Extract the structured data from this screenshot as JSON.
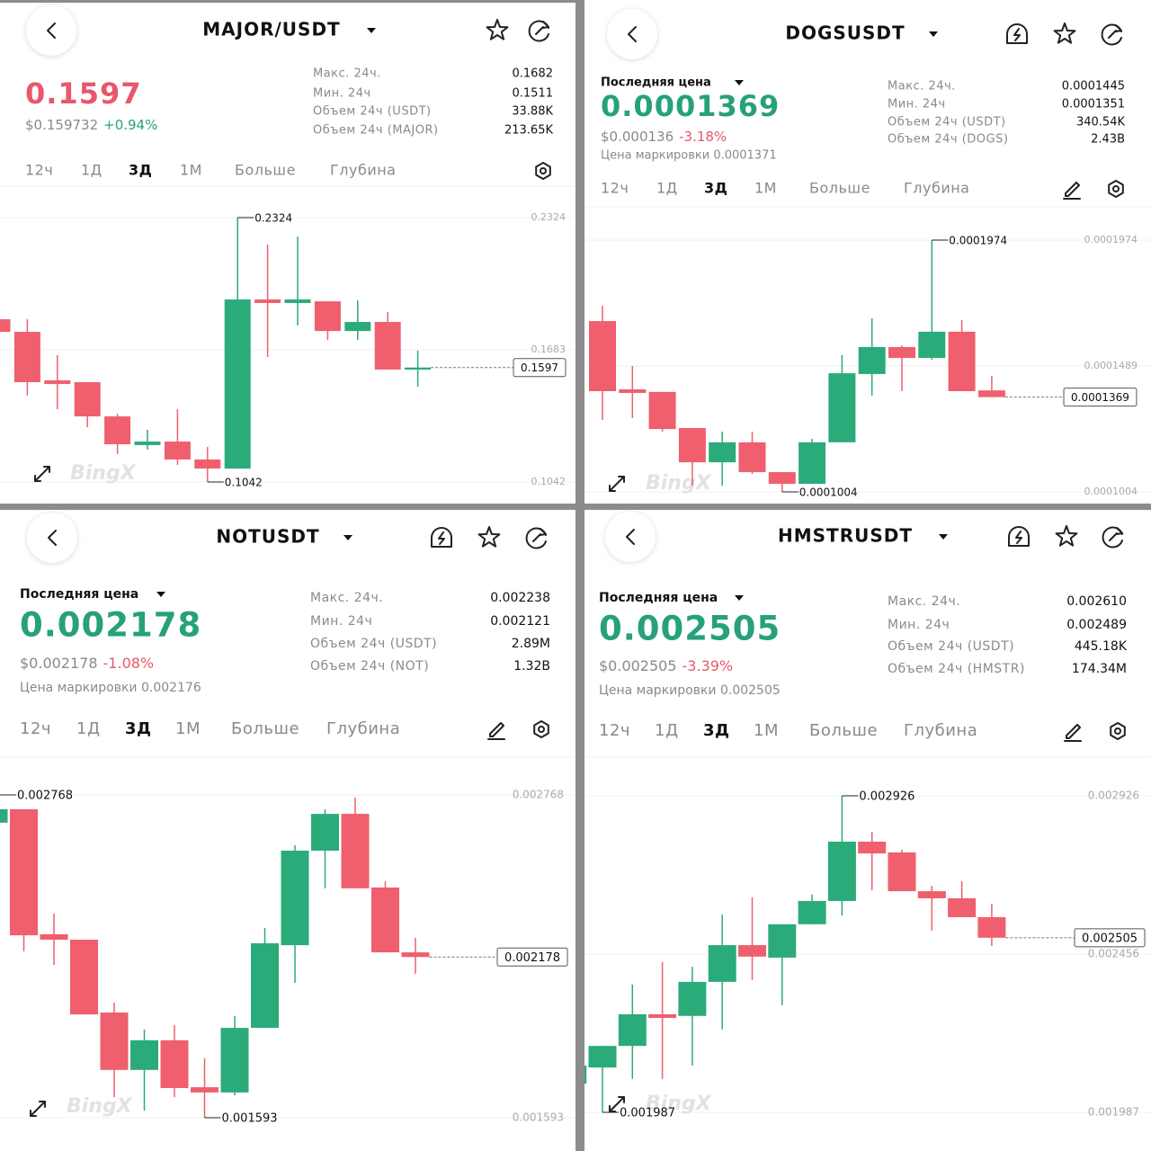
{
  "up_color": "#2bab7a",
  "down_color": "#ef5f6e",
  "panels": [
    {
      "pair": "MAJOR/USDT",
      "price": "0.1597",
      "price_color": "#e8576a",
      "usd_price": "$0.159732",
      "change": "+0.94%",
      "change_color": "#26a17b",
      "stats": [
        {
          "label": "Макс. 24ч.",
          "value": "0.1682"
        },
        {
          "label": "Мин. 24ч",
          "value": "0.1511"
        },
        {
          "label": "Объем 24ч (USDT)",
          "value": "33.88K"
        },
        {
          "label": "Объем 24ч (MAJOR)",
          "value": "213.65K"
        }
      ],
      "tabs": [
        "12ч",
        "1Д",
        "3Д",
        "1М",
        "Больше",
        "Глубина"
      ],
      "active_tab": 2,
      "chart": {
        "watermark": "BingX",
        "ylim": [
          0.1042,
          0.2324
        ],
        "yticks": [
          0.1042,
          0.1683,
          0.2324
        ],
        "last": 0.1597,
        "candles": [
          [
            0.1831,
            0.1853,
            0.1757,
            0.177
          ],
          [
            0.177,
            0.1831,
            0.1461,
            0.1526
          ],
          [
            0.1535,
            0.1657,
            0.1395,
            0.1517
          ],
          [
            0.1526,
            0.1526,
            0.1308,
            0.136
          ],
          [
            0.136,
            0.1373,
            0.1177,
            0.1225
          ],
          [
            0.1221,
            0.1295,
            0.1199,
            0.1238
          ],
          [
            0.1238,
            0.1395,
            0.1125,
            0.1151
          ],
          [
            0.1151,
            0.1212,
            0.1042,
            0.1107
          ],
          [
            0.1107,
            0.2324,
            0.1107,
            0.1927
          ],
          [
            0.1927,
            0.2193,
            0.1648,
            0.191
          ],
          [
            0.191,
            0.2232,
            0.1801,
            0.1927
          ],
          [
            0.1918,
            0.1918,
            0.1731,
            0.1774
          ],
          [
            0.1774,
            0.1923,
            0.1731,
            0.1818
          ],
          [
            0.1818,
            0.1866,
            0.1587,
            0.1587
          ],
          [
            0.1587,
            0.1679,
            0.1504,
            0.1597
          ]
        ]
      }
    },
    {
      "pair": "DOGSUSDT",
      "last_price_label": "Последняя цена",
      "price": "0.0001369",
      "price_color": "#26a17b",
      "usd_price": "$0.000136",
      "change": "-3.18%",
      "change_color": "#e8576a",
      "mark_price": "Цена маркировки 0.0001371",
      "stats": [
        {
          "label": "Макс. 24ч.",
          "value": "0.0001445"
        },
        {
          "label": "Мин. 24ч",
          "value": "0.0001351"
        },
        {
          "label": "Объем 24ч (USDT)",
          "value": "340.54K"
        },
        {
          "label": "Объем 24ч (DOGS)",
          "value": "2.43B"
        }
      ],
      "tabs": [
        "12ч",
        "1Д",
        "3Д",
        "1М",
        "Больше",
        "Глубина"
      ],
      "active_tab": 2,
      "chart": {
        "watermark": "BingX",
        "ylim": [
          0.0001004,
          0.0001974
        ],
        "yticks": [
          0.0001004,
          0.0001489,
          0.0001974
        ],
        "last": 0.0001369,
        "candles": [
          [
            0.0001662,
            0.0001721,
            0.0001281,
            0.0001392
          ],
          [
            0.0001399,
            0.0001489,
            0.0001288,
            0.0001385
          ],
          [
            0.0001389,
            0.0001389,
            0.0001236,
            0.0001246
          ],
          [
            0.000125,
            0.000125,
            0.0001028,
            0.0001118
          ],
          [
            0.0001118,
            0.0001236,
            0.0001028,
            0.0001195
          ],
          [
            0.0001195,
            0.0001236,
            0.0001073,
            0.000108
          ],
          [
            0.000108,
            0.000108,
            0.0001004,
            0.0001035
          ],
          [
            0.0001035,
            0.0001208,
            0.0001035,
            0.0001195
          ],
          [
            0.0001195,
            0.0001531,
            0.0001195,
            0.0001461
          ],
          [
            0.0001458,
            0.0001673,
            0.0001375,
            0.0001562
          ],
          [
            0.0001562,
            0.0001569,
            0.0001392,
            0.000152
          ],
          [
            0.000152,
            0.0001974,
            0.0001513,
            0.0001621
          ],
          [
            0.0001621,
            0.0001666,
            0.0001392,
            0.0001392
          ],
          [
            0.0001395,
            0.0001451,
            0.0001369,
            0.0001369
          ]
        ]
      }
    },
    {
      "pair": "NOTUSDT",
      "last_price_label": "Последняя цена",
      "price": "0.002178",
      "price_color": "#26a17b",
      "usd_price": "$0.002178",
      "change": "-1.08%",
      "change_color": "#e8576a",
      "mark_price": "Цена маркировки 0.002176",
      "stats": [
        {
          "label": "Макс. 24ч.",
          "value": "0.002238"
        },
        {
          "label": "Мин. 24ч",
          "value": "0.002121"
        },
        {
          "label": "Объем 24ч (USDT)",
          "value": "2.89M"
        },
        {
          "label": "Объем 24ч (NOT)",
          "value": "1.32B"
        }
      ],
      "tabs": [
        "12ч",
        "1Д",
        "3Д",
        "1М",
        "Больше",
        "Глубина"
      ],
      "active_tab": 2,
      "chart": {
        "watermark": "BingX",
        "ylim": [
          0.001593,
          0.002768
        ],
        "yticks": [
          0.001593,
          0.002768
        ],
        "last": 0.002178,
        "candles": [
          [
            0.002667,
            0.002768,
            0.002667,
            0.002716
          ],
          [
            0.002716,
            0.002716,
            0.002199,
            0.002257
          ],
          [
            0.002261,
            0.002336,
            0.002149,
            0.002241
          ],
          [
            0.002241,
            0.002241,
            0.001969,
            0.001969
          ],
          [
            0.001976,
            0.002012,
            0.001668,
            0.001767
          ],
          [
            0.001767,
            0.001914,
            0.001619,
            0.001875
          ],
          [
            0.001875,
            0.00193,
            0.001668,
            0.001701
          ],
          [
            0.001704,
            0.001809,
            0.001593,
            0.001685
          ],
          [
            0.001685,
            0.001963,
            0.001675,
            0.00192
          ],
          [
            0.00192,
            0.002284,
            0.00192,
            0.002228
          ],
          [
            0.002221,
            0.002585,
            0.002084,
            0.002565
          ],
          [
            0.002565,
            0.002716,
            0.002428,
            0.002699
          ],
          [
            0.002699,
            0.002758,
            0.002428,
            0.002428
          ],
          [
            0.002431,
            0.002454,
            0.002195,
            0.002195
          ],
          [
            0.002195,
            0.002248,
            0.002117,
            0.002178
          ]
        ]
      }
    },
    {
      "pair": "HMSTRUSDT",
      "last_price_label": "Последняя цена",
      "price": "0.002505",
      "price_color": "#26a17b",
      "usd_price": "$0.002505",
      "change": "-3.39%",
      "change_color": "#e8576a",
      "mark_price": "Цена маркировки 0.002505",
      "stats": [
        {
          "label": "Макс. 24ч.",
          "value": "0.002610"
        },
        {
          "label": "Мин. 24ч",
          "value": "0.002489"
        },
        {
          "label": "Объем 24ч (USDT)",
          "value": "445.18K"
        },
        {
          "label": "Объем 24ч (HMSTR)",
          "value": "174.34M"
        }
      ],
      "tabs": [
        "12ч",
        "1Д",
        "3Д",
        "1М",
        "Больше",
        "Глубина"
      ],
      "active_tab": 2,
      "chart": {
        "watermark": "BingX",
        "ylim": [
          0.001987,
          0.002926
        ],
        "yticks": [
          0.001987,
          0.002456,
          0.002926
        ],
        "last": 0.002505,
        "candles": [
          [
            0.002072,
            0.002126,
            0.002072,
            0.002126
          ],
          [
            0.00212,
            0.002184,
            0.001987,
            0.002184
          ],
          [
            0.002184,
            0.002366,
            0.002086,
            0.002278
          ],
          [
            0.002278,
            0.002433,
            0.002086,
            0.002267
          ],
          [
            0.002273,
            0.002419,
            0.002126,
            0.002374
          ],
          [
            0.002374,
            0.002574,
            0.002233,
            0.002483
          ],
          [
            0.002483,
            0.002625,
            0.002379,
            0.002449
          ],
          [
            0.002446,
            0.002545,
            0.002305,
            0.002545
          ],
          [
            0.002545,
            0.002633,
            0.002545,
            0.002614
          ],
          [
            0.002614,
            0.002926,
            0.002571,
            0.00279
          ],
          [
            0.00279,
            0.002819,
            0.002646,
            0.002755
          ],
          [
            0.002758,
            0.002766,
            0.002643,
            0.002643
          ],
          [
            0.002643,
            0.002659,
            0.002526,
            0.002622
          ],
          [
            0.002622,
            0.002673,
            0.002566,
            0.002566
          ],
          [
            0.002566,
            0.002606,
            0.002481,
            0.002505
          ]
        ]
      }
    }
  ]
}
